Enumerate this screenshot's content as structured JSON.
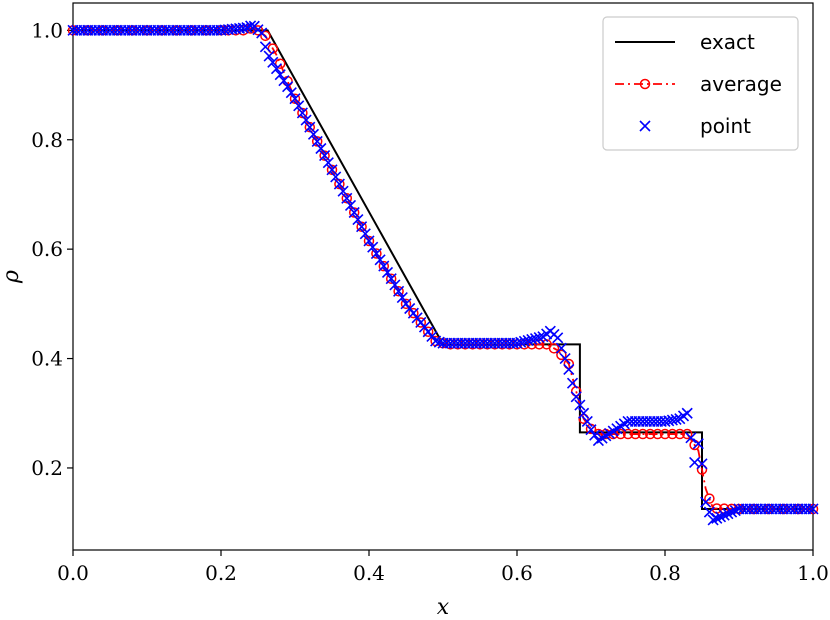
{
  "chart_data": {
    "type": "line",
    "xlabel": "x",
    "ylabel": "ρ",
    "xlim": [
      0.0,
      1.0
    ],
    "ylim": [
      0.05,
      1.05
    ],
    "xticks": [
      "0.0",
      "0.2",
      "0.4",
      "0.6",
      "0.8",
      "1.0"
    ],
    "yticks": [
      "0.2",
      "0.4",
      "0.6",
      "0.8",
      "1.0"
    ],
    "grid": false,
    "legend_position": "top-right",
    "series": [
      {
        "name": "exact",
        "style": "solid",
        "color": "#000000",
        "x": [
          0.0,
          0.263,
          0.5,
          0.685,
          0.685,
          0.85,
          0.85,
          1.0
        ],
        "y": [
          1.0,
          1.0,
          0.426,
          0.426,
          0.265,
          0.265,
          0.125,
          0.125
        ]
      },
      {
        "name": "average",
        "style": "dashdot-circle",
        "color": "#ff0000",
        "x": [
          0.0,
          0.2,
          0.23,
          0.245,
          0.26,
          0.275,
          0.3,
          0.35,
          0.4,
          0.45,
          0.49,
          0.505,
          0.55,
          0.6,
          0.64,
          0.655,
          0.67,
          0.68,
          0.69,
          0.705,
          0.75,
          0.8,
          0.83,
          0.845,
          0.855,
          0.865,
          0.9,
          1.0
        ],
        "y": [
          1.0,
          1.0,
          1.0,
          1.005,
          0.99,
          0.955,
          0.875,
          0.745,
          0.615,
          0.5,
          0.432,
          0.426,
          0.426,
          0.426,
          0.426,
          0.415,
          0.39,
          0.34,
          0.29,
          0.262,
          0.262,
          0.262,
          0.262,
          0.232,
          0.162,
          0.126,
          0.125,
          0.125
        ]
      },
      {
        "name": "point",
        "style": "x-marker",
        "color": "#0000ff",
        "x": [
          0.0,
          0.2,
          0.235,
          0.243,
          0.255,
          0.262,
          0.275,
          0.3,
          0.35,
          0.4,
          0.45,
          0.49,
          0.5,
          0.55,
          0.6,
          0.635,
          0.645,
          0.655,
          0.665,
          0.67,
          0.68,
          0.69,
          0.7,
          0.71,
          0.75,
          0.8,
          0.82,
          0.83,
          0.84,
          0.848,
          0.852,
          0.858,
          0.865,
          0.9,
          1.0
        ],
        "y": [
          1.0,
          1.0,
          1.005,
          1.01,
          0.995,
          0.96,
          0.93,
          0.875,
          0.745,
          0.615,
          0.5,
          0.432,
          0.428,
          0.428,
          0.428,
          0.44,
          0.45,
          0.438,
          0.4,
          0.38,
          0.33,
          0.3,
          0.27,
          0.25,
          0.285,
          0.285,
          0.29,
          0.3,
          0.21,
          0.265,
          0.15,
          0.125,
          0.105,
          0.125,
          0.125
        ]
      }
    ]
  }
}
